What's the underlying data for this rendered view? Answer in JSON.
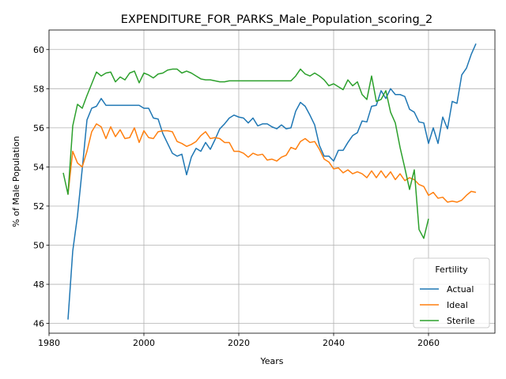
{
  "chart_data": {
    "type": "line",
    "title": "EXPENDITURE_FOR_PARKS_Male_Population_scoring_2",
    "xlabel": "Years",
    "ylabel": "% of Male Population",
    "xlim": [
      1980,
      2074
    ],
    "ylim": [
      45.5,
      61.0
    ],
    "x_ticks": [
      1980,
      2000,
      2020,
      2040,
      2060
    ],
    "y_ticks": [
      46,
      48,
      50,
      52,
      54,
      56,
      58,
      60
    ],
    "grid": true,
    "legend": {
      "title": "Fertility",
      "placement": "bottom-right"
    },
    "series": [
      {
        "name": "Actual",
        "color": "#1f77b4",
        "points": [
          [
            1984,
            46.2
          ],
          [
            1985,
            49.7
          ],
          [
            1986,
            51.5
          ],
          [
            1987,
            53.9
          ],
          [
            1988,
            56.4
          ],
          [
            1989,
            57.0
          ],
          [
            1990,
            57.1
          ],
          [
            1991,
            57.5
          ],
          [
            1992,
            57.15
          ],
          [
            1993,
            57.15
          ],
          [
            1994,
            57.15
          ],
          [
            1995,
            57.15
          ],
          [
            1996,
            57.15
          ],
          [
            1997,
            57.15
          ],
          [
            1998,
            57.15
          ],
          [
            1999,
            57.15
          ],
          [
            2000,
            57.0
          ],
          [
            2001,
            57.0
          ],
          [
            2002,
            56.5
          ],
          [
            2003,
            56.45
          ],
          [
            2004,
            55.7
          ],
          [
            2005,
            55.2
          ],
          [
            2006,
            54.7
          ],
          [
            2007,
            54.55
          ],
          [
            2008,
            54.65
          ],
          [
            2009,
            53.6
          ],
          [
            2010,
            54.5
          ],
          [
            2011,
            54.95
          ],
          [
            2012,
            54.8
          ],
          [
            2013,
            55.25
          ],
          [
            2014,
            54.9
          ],
          [
            2015,
            55.4
          ],
          [
            2016,
            55.95
          ],
          [
            2017,
            56.2
          ],
          [
            2018,
            56.5
          ],
          [
            2019,
            56.65
          ],
          [
            2020,
            56.55
          ],
          [
            2021,
            56.5
          ],
          [
            2022,
            56.25
          ],
          [
            2023,
            56.5
          ],
          [
            2024,
            56.1
          ],
          [
            2025,
            56.2
          ],
          [
            2026,
            56.2
          ],
          [
            2027,
            56.05
          ],
          [
            2028,
            55.95
          ],
          [
            2029,
            56.15
          ],
          [
            2030,
            55.95
          ],
          [
            2031,
            56.0
          ],
          [
            2032,
            56.85
          ],
          [
            2033,
            57.3
          ],
          [
            2034,
            57.1
          ],
          [
            2035,
            56.65
          ],
          [
            2036,
            56.15
          ],
          [
            2037,
            55.1
          ],
          [
            2038,
            54.55
          ],
          [
            2039,
            54.55
          ],
          [
            2040,
            54.3
          ],
          [
            2041,
            54.85
          ],
          [
            2042,
            54.85
          ],
          [
            2043,
            55.25
          ],
          [
            2044,
            55.6
          ],
          [
            2045,
            55.75
          ],
          [
            2046,
            56.35
          ],
          [
            2047,
            56.3
          ],
          [
            2048,
            57.1
          ],
          [
            2049,
            57.15
          ],
          [
            2050,
            57.9
          ],
          [
            2051,
            57.5
          ],
          [
            2052,
            58.0
          ],
          [
            2053,
            57.7
          ],
          [
            2054,
            57.7
          ],
          [
            2055,
            57.6
          ],
          [
            2056,
            56.95
          ],
          [
            2057,
            56.8
          ],
          [
            2058,
            56.3
          ],
          [
            2059,
            56.25
          ],
          [
            2060,
            55.2
          ],
          [
            2061,
            56.0
          ],
          [
            2062,
            55.2
          ],
          [
            2063,
            56.55
          ],
          [
            2064,
            55.95
          ],
          [
            2065,
            57.35
          ],
          [
            2066,
            57.25
          ],
          [
            2067,
            58.7
          ],
          [
            2068,
            59.05
          ],
          [
            2069,
            59.75
          ],
          [
            2070,
            60.3
          ]
        ]
      },
      {
        "name": "Ideal",
        "color": "#ff7f0e",
        "points": [
          [
            1984,
            52.6
          ],
          [
            1985,
            54.8
          ],
          [
            1986,
            54.2
          ],
          [
            1987,
            54.0
          ],
          [
            1988,
            54.8
          ],
          [
            1989,
            55.8
          ],
          [
            1990,
            56.2
          ],
          [
            1991,
            56.05
          ],
          [
            1992,
            55.45
          ],
          [
            1993,
            56.05
          ],
          [
            1994,
            55.55
          ],
          [
            1995,
            55.9
          ],
          [
            1996,
            55.45
          ],
          [
            1997,
            55.5
          ],
          [
            1998,
            56.0
          ],
          [
            1999,
            55.25
          ],
          [
            2000,
            55.85
          ],
          [
            2001,
            55.5
          ],
          [
            2002,
            55.45
          ],
          [
            2003,
            55.8
          ],
          [
            2004,
            55.85
          ],
          [
            2005,
            55.85
          ],
          [
            2006,
            55.8
          ],
          [
            2007,
            55.3
          ],
          [
            2008,
            55.2
          ],
          [
            2009,
            55.05
          ],
          [
            2010,
            55.15
          ],
          [
            2011,
            55.3
          ],
          [
            2012,
            55.6
          ],
          [
            2013,
            55.8
          ],
          [
            2014,
            55.45
          ],
          [
            2015,
            55.5
          ],
          [
            2016,
            55.45
          ],
          [
            2017,
            55.25
          ],
          [
            2018,
            55.25
          ],
          [
            2019,
            54.8
          ],
          [
            2020,
            54.8
          ],
          [
            2021,
            54.7
          ],
          [
            2022,
            54.5
          ],
          [
            2023,
            54.7
          ],
          [
            2024,
            54.6
          ],
          [
            2025,
            54.65
          ],
          [
            2026,
            54.35
          ],
          [
            2027,
            54.4
          ],
          [
            2028,
            54.3
          ],
          [
            2029,
            54.5
          ],
          [
            2030,
            54.6
          ],
          [
            2031,
            55.0
          ],
          [
            2032,
            54.9
          ],
          [
            2033,
            55.3
          ],
          [
            2034,
            55.45
          ],
          [
            2035,
            55.25
          ],
          [
            2036,
            55.3
          ],
          [
            2037,
            54.9
          ],
          [
            2038,
            54.4
          ],
          [
            2039,
            54.25
          ],
          [
            2040,
            53.9
          ],
          [
            2041,
            53.95
          ],
          [
            2042,
            53.7
          ],
          [
            2043,
            53.85
          ],
          [
            2044,
            53.65
          ],
          [
            2045,
            53.75
          ],
          [
            2046,
            53.65
          ],
          [
            2047,
            53.45
          ],
          [
            2048,
            53.8
          ],
          [
            2049,
            53.45
          ],
          [
            2050,
            53.8
          ],
          [
            2051,
            53.45
          ],
          [
            2052,
            53.75
          ],
          [
            2053,
            53.35
          ],
          [
            2054,
            53.65
          ],
          [
            2055,
            53.3
          ],
          [
            2056,
            53.45
          ],
          [
            2057,
            53.35
          ],
          [
            2058,
            53.1
          ],
          [
            2059,
            53.0
          ],
          [
            2060,
            52.55
          ],
          [
            2061,
            52.7
          ],
          [
            2062,
            52.4
          ],
          [
            2063,
            52.45
          ],
          [
            2064,
            52.2
          ],
          [
            2065,
            52.25
          ],
          [
            2066,
            52.2
          ],
          [
            2067,
            52.3
          ],
          [
            2068,
            52.55
          ],
          [
            2069,
            52.75
          ],
          [
            2070,
            52.7
          ]
        ]
      },
      {
        "name": "Sterile",
        "color": "#2ca02c",
        "points": [
          [
            1983,
            53.7
          ],
          [
            1984,
            52.6
          ],
          [
            1985,
            56.1
          ],
          [
            1986,
            57.2
          ],
          [
            1987,
            57.0
          ],
          [
            1988,
            57.65
          ],
          [
            1989,
            58.25
          ],
          [
            1990,
            58.85
          ],
          [
            1991,
            58.65
          ],
          [
            1992,
            58.8
          ],
          [
            1993,
            58.85
          ],
          [
            1994,
            58.35
          ],
          [
            1995,
            58.6
          ],
          [
            1996,
            58.45
          ],
          [
            1997,
            58.8
          ],
          [
            1998,
            58.9
          ],
          [
            1999,
            58.3
          ],
          [
            2000,
            58.8
          ],
          [
            2001,
            58.7
          ],
          [
            2002,
            58.55
          ],
          [
            2003,
            58.75
          ],
          [
            2004,
            58.8
          ],
          [
            2005,
            58.95
          ],
          [
            2006,
            59.0
          ],
          [
            2007,
            59.0
          ],
          [
            2008,
            58.8
          ],
          [
            2009,
            58.9
          ],
          [
            2010,
            58.8
          ],
          [
            2011,
            58.65
          ],
          [
            2012,
            58.5
          ],
          [
            2013,
            58.45
          ],
          [
            2014,
            58.45
          ],
          [
            2015,
            58.4
          ],
          [
            2016,
            58.35
          ],
          [
            2017,
            58.35
          ],
          [
            2018,
            58.4
          ],
          [
            2019,
            58.4
          ],
          [
            2020,
            58.4
          ],
          [
            2021,
            58.4
          ],
          [
            2022,
            58.4
          ],
          [
            2023,
            58.4
          ],
          [
            2024,
            58.4
          ],
          [
            2025,
            58.4
          ],
          [
            2026,
            58.4
          ],
          [
            2027,
            58.4
          ],
          [
            2028,
            58.4
          ],
          [
            2029,
            58.4
          ],
          [
            2030,
            58.4
          ],
          [
            2031,
            58.4
          ],
          [
            2032,
            58.65
          ],
          [
            2033,
            59.0
          ],
          [
            2034,
            58.75
          ],
          [
            2035,
            58.65
          ],
          [
            2036,
            58.8
          ],
          [
            2037,
            58.65
          ],
          [
            2038,
            58.45
          ],
          [
            2039,
            58.15
          ],
          [
            2040,
            58.25
          ],
          [
            2041,
            58.1
          ],
          [
            2042,
            57.95
          ],
          [
            2043,
            58.45
          ],
          [
            2044,
            58.15
          ],
          [
            2045,
            58.35
          ],
          [
            2046,
            57.7
          ],
          [
            2047,
            57.45
          ],
          [
            2048,
            58.65
          ],
          [
            2049,
            57.35
          ],
          [
            2050,
            57.45
          ],
          [
            2051,
            57.9
          ],
          [
            2052,
            56.8
          ],
          [
            2053,
            56.25
          ],
          [
            2054,
            55.0
          ],
          [
            2055,
            53.95
          ],
          [
            2056,
            52.85
          ],
          [
            2057,
            53.85
          ],
          [
            2058,
            50.8
          ],
          [
            2059,
            50.35
          ],
          [
            2060,
            51.35
          ]
        ]
      }
    ]
  }
}
